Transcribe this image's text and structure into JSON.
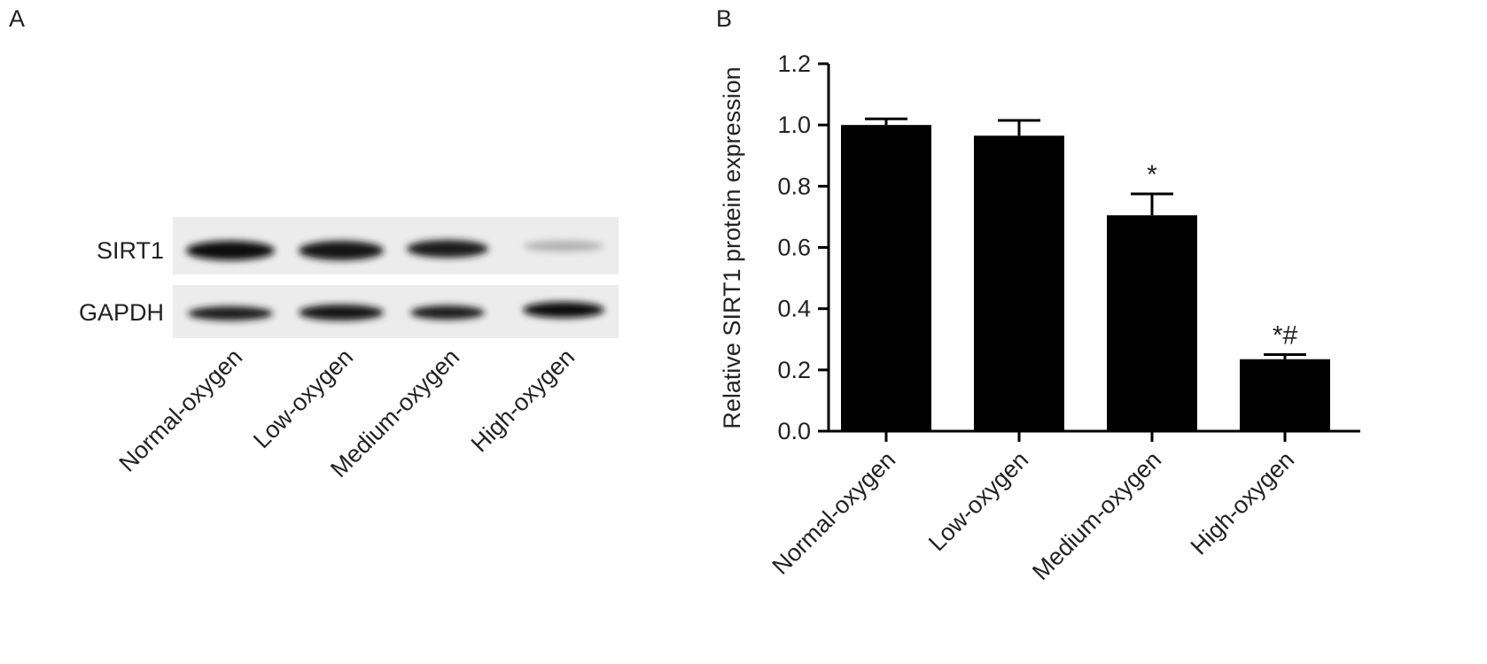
{
  "panel_a": {
    "label": "A",
    "rows": [
      "SIRT1",
      "GAPDH"
    ],
    "lanes": [
      "Normal-oxygen",
      "Low-oxygen",
      "Medium-oxygen",
      "High-oxygen"
    ]
  },
  "chart_data": {
    "type": "bar",
    "panel_label": "B",
    "y_label": "Relative SIRT1 protein expression",
    "categories": [
      "Normal-oxygen",
      "Low-oxygen",
      "Medium-oxygen",
      "High-oxygen"
    ],
    "values": [
      1.0,
      0.965,
      0.705,
      0.235
    ],
    "errors": [
      0.02,
      0.05,
      0.07,
      0.015
    ],
    "bar_labels": [
      null,
      null,
      "*",
      "*#"
    ],
    "color": "#000000",
    "ylim": [
      0,
      1.2
    ],
    "yticks": [
      {
        "value": 0,
        "label": "0.0"
      },
      0.2,
      0.4,
      0.6,
      0.8,
      {
        "value": 1,
        "label": "1.0"
      },
      1.2
    ]
  }
}
